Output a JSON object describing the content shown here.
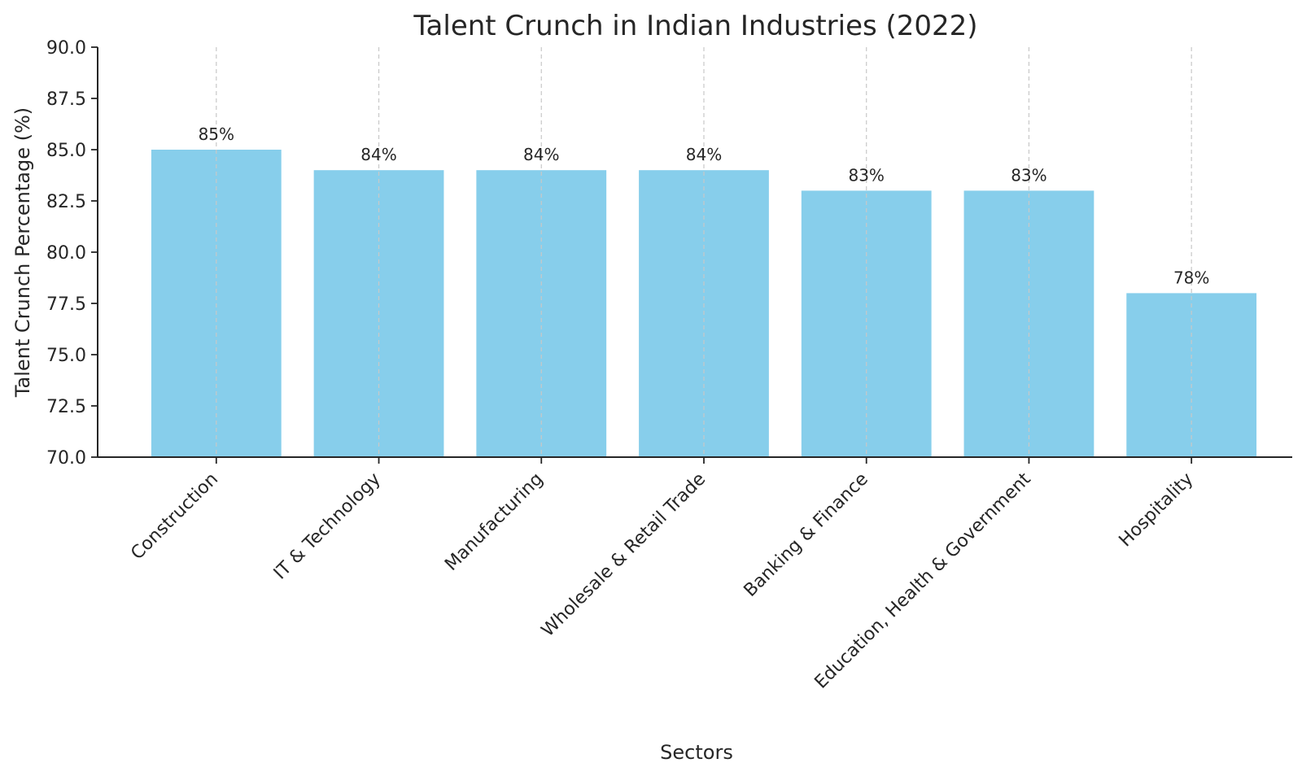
{
  "chart_data": {
    "type": "bar",
    "title": "Talent Crunch in Indian Industries (2022)",
    "xlabel": "Sectors",
    "ylabel": "Talent Crunch Percentage (%)",
    "categories": [
      "Construction",
      "IT & Technology",
      "Manufacturing",
      "Wholesale & Retail Trade",
      "Banking & Finance",
      "Education, Health & Government",
      "Hospitality"
    ],
    "values": [
      85,
      84,
      84,
      84,
      83,
      83,
      78
    ],
    "value_labels": [
      "85%",
      "84%",
      "84%",
      "84%",
      "83%",
      "83%",
      "78%"
    ],
    "ylim": [
      70,
      90
    ],
    "yticks": [
      70.0,
      72.5,
      75.0,
      77.5,
      80.0,
      82.5,
      85.0,
      87.5,
      90.0
    ],
    "ytick_labels": [
      "70.0",
      "72.5",
      "75.0",
      "77.5",
      "80.0",
      "82.5",
      "85.0",
      "87.5",
      "90.0"
    ],
    "grid": "x-axis dashed",
    "bar_color": "#87ceeb"
  }
}
